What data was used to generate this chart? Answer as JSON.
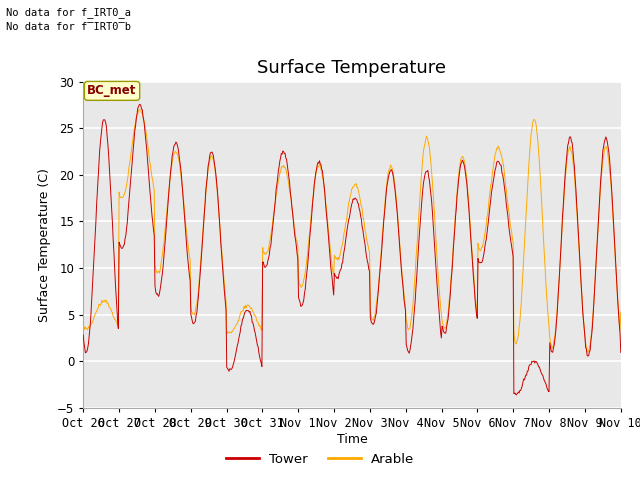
{
  "title": "Surface Temperature",
  "xlabel": "Time",
  "ylabel": "Surface Temperature (C)",
  "ylim": [
    -5,
    30
  ],
  "yticks": [
    -5,
    0,
    5,
    10,
    15,
    20,
    25,
    30
  ],
  "x_labels": [
    "Oct 26",
    "Oct 27",
    "Oct 28",
    "Oct 29",
    "Oct 30",
    "Oct 31",
    "Nov 1",
    "Nov 2",
    "Nov 3",
    "Nov 4",
    "Nov 5",
    "Nov 6",
    "Nov 7",
    "Nov 8",
    "Nov 9",
    "Nov 10"
  ],
  "tower_color": "#cc0000",
  "arable_color": "#ffaa00",
  "legend_entries": [
    "Tower",
    "Arable"
  ],
  "no_data_text1": "No data for f_IRT0_a",
  "no_data_text2": "No data for f̅IRT0̅b",
  "bc_met_text": "BC_met",
  "plot_background": "#e8e8e8",
  "fig_background": "#ffffff",
  "grid_color": "#ffffff",
  "title_fontsize": 13,
  "axis_fontsize": 9,
  "tick_fontsize": 8.5,
  "n_days": 15
}
